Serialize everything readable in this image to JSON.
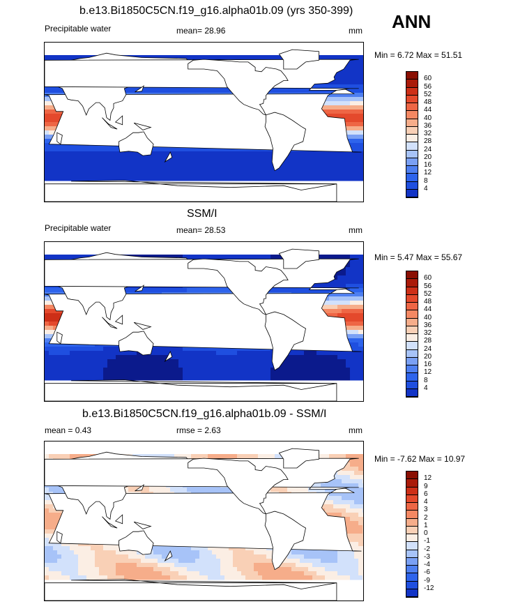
{
  "header": {
    "ann_label": "ANN"
  },
  "palette": {
    "abs": [
      "#0b1a8c",
      "#1234c6",
      "#1f4fe0",
      "#2e64ec",
      "#4e7ff0",
      "#7aa0f4",
      "#a7c3f8",
      "#d2e1fb",
      "#fbeee4",
      "#f9d0b6",
      "#f6ad8a",
      "#f48863",
      "#ee6645",
      "#e4492c",
      "#cd2f17",
      "#aa1a09",
      "#8a0f03"
    ],
    "diff": [
      "#0b1a8c",
      "#1234c6",
      "#1f4fe0",
      "#2e64ec",
      "#4e7ff0",
      "#7aa0f4",
      "#a7c3f8",
      "#d2e1fb",
      "#fbeee4",
      "#f9d0b6",
      "#f6ad8a",
      "#f48863",
      "#ee6645",
      "#e4492c",
      "#cd2f17",
      "#aa1a09",
      "#8a0f03"
    ]
  },
  "panels": [
    {
      "title": "b.e13.Bi1850C5CN.f19_g16.alpha01b.09 (yrs 350-399)",
      "left_label": "Precipitable water",
      "center_label": "mean=  28.96",
      "units": "mm",
      "minmax": "Min =   6.72 Max =  51.51",
      "levels": [
        "60",
        "56",
        "52",
        "48",
        "44",
        "40",
        "36",
        "32",
        "28",
        "24",
        "20",
        "16",
        "12",
        "8",
        "4"
      ],
      "map_kind": "abs"
    },
    {
      "title": "SSM/I",
      "left_label": "Precipitable water",
      "center_label": "mean=  28.53",
      "units": "mm",
      "minmax": "Min =   5.47 Max =  55.67",
      "levels": [
        "60",
        "56",
        "52",
        "48",
        "44",
        "40",
        "36",
        "32",
        "28",
        "24",
        "20",
        "16",
        "12",
        "8",
        "4"
      ],
      "map_kind": "abs"
    },
    {
      "title": "b.e13.Bi1850C5CN.f19_g16.alpha01b.09 - SSM/I",
      "left_label": "mean =   0.43",
      "center_label": "rmse =   2.63",
      "units": "mm",
      "minmax": "Min =  -7.62 Max =  10.97",
      "levels": [
        "12",
        "9",
        "6",
        "4",
        "3",
        "2",
        "1",
        "0",
        "-1",
        "-2",
        "-3",
        "-4",
        "-6",
        "-9",
        "-12"
      ],
      "map_kind": "diff"
    }
  ]
}
